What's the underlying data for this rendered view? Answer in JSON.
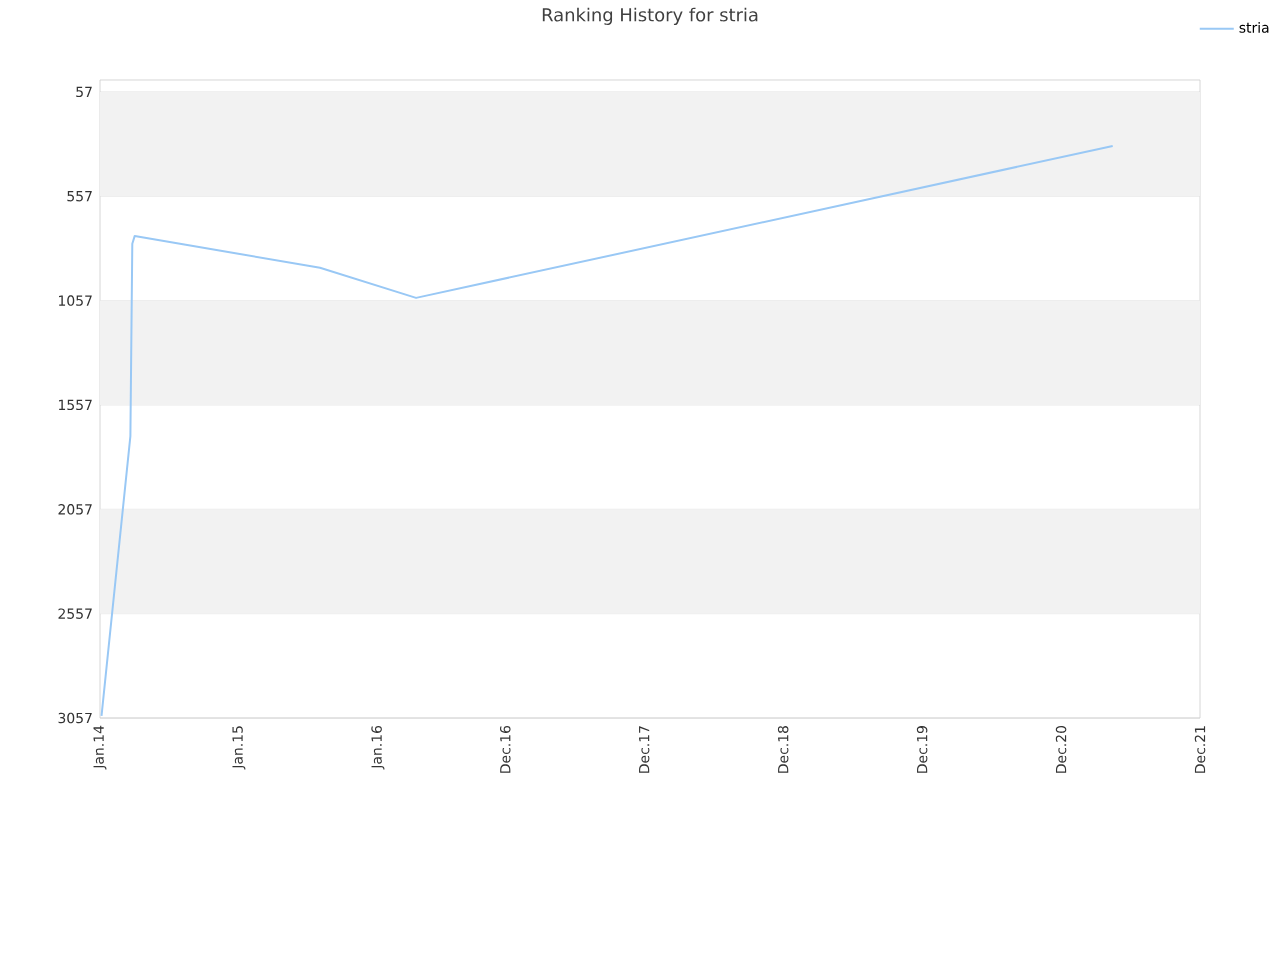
{
  "chart_data": {
    "type": "line",
    "title": "Ranking History for stria",
    "x": [
      "2014-01-05",
      "2014-03-20",
      "2014-03-25",
      "2014-04-01",
      "2015-08-01",
      "2016-04-10",
      "2021-04-15"
    ],
    "series": [
      {
        "name": "stria",
        "color": "#99c8f5",
        "values": [
          3047,
          1706,
          785,
          747,
          900,
          1044,
          316
        ]
      }
    ],
    "xlim": [
      "2014-01",
      "2021-12"
    ],
    "xticks": [
      {
        "value": "2014-01",
        "label": "Jan.14"
      },
      {
        "value": "2015-01",
        "label": "Jan.15"
      },
      {
        "value": "2016-01",
        "label": "Jan.16"
      },
      {
        "value": "2016-12",
        "label": "Dec.16"
      },
      {
        "value": "2017-12",
        "label": "Dec.17"
      },
      {
        "value": "2018-12",
        "label": "Dec.18"
      },
      {
        "value": "2019-12",
        "label": "Dec.19"
      },
      {
        "value": "2020-12",
        "label": "Dec.20"
      },
      {
        "value": "2021-12",
        "label": "Dec.21"
      }
    ],
    "ylim": [
      3057,
      0
    ],
    "yticks": [
      57,
      557,
      1057,
      1557,
      2057,
      2557,
      3057
    ],
    "bands": [
      {
        "axis": "y",
        "from": 57,
        "to": 557,
        "color": "#f2f2f2"
      },
      {
        "axis": "y",
        "from": 1057,
        "to": 1557,
        "color": "#f2f2f2"
      },
      {
        "axis": "y",
        "from": 2057,
        "to": 2557,
        "color": "#f2f2f2"
      }
    ],
    "grid": "y",
    "legend": "top right",
    "marker": "none"
  }
}
